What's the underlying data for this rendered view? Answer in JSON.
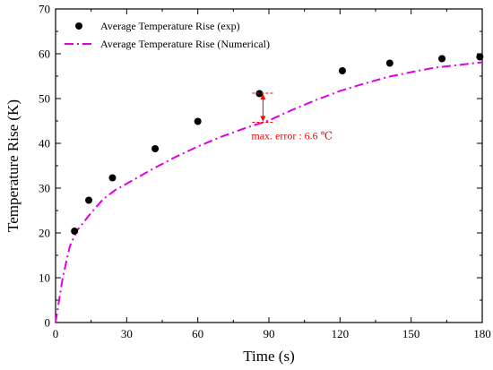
{
  "chart_data": {
    "type": "scatter",
    "xlabel": "Time (s)",
    "ylabel": "Temperature Rise (K)",
    "xlim": [
      0,
      180
    ],
    "ylim": [
      0,
      70
    ],
    "xticks": [
      0,
      30,
      60,
      90,
      120,
      150,
      180
    ],
    "yticks": [
      0,
      10,
      20,
      30,
      40,
      50,
      60,
      70
    ],
    "grid": false,
    "legend_position": "top-left",
    "series": [
      {
        "name": "Average Temperature Rise (exp)",
        "kind": "scatter",
        "color": "#000000",
        "x": [
          8,
          14,
          24,
          42,
          60,
          86,
          121,
          141,
          163,
          179
        ],
        "y": [
          20.4,
          27.3,
          32.3,
          38.8,
          44.9,
          51.1,
          56.2,
          57.9,
          58.9,
          59.3
        ]
      },
      {
        "name": "Average Temperature Rise (Numerical)",
        "kind": "line",
        "style": "dash-dot",
        "color": "#e000e0",
        "x": [
          0,
          3,
          6,
          9,
          15,
          20,
          25,
          30,
          40,
          50,
          60,
          70,
          80,
          90,
          100,
          110,
          120,
          130,
          140,
          150,
          160,
          170,
          180
        ],
        "y": [
          0,
          10,
          17,
          20.5,
          24.5,
          27.5,
          29.5,
          31,
          34,
          36.8,
          39.3,
          41.5,
          43.4,
          45.1,
          47.5,
          49.7,
          51.7,
          53.3,
          54.8,
          55.9,
          56.9,
          57.5,
          58.1
        ]
      }
    ],
    "annotation": {
      "text": "max. error : 6.6 ℃",
      "color": "#ff0000",
      "x": 87.5,
      "y_top": 51.2,
      "y_bottom": 44.7
    }
  }
}
